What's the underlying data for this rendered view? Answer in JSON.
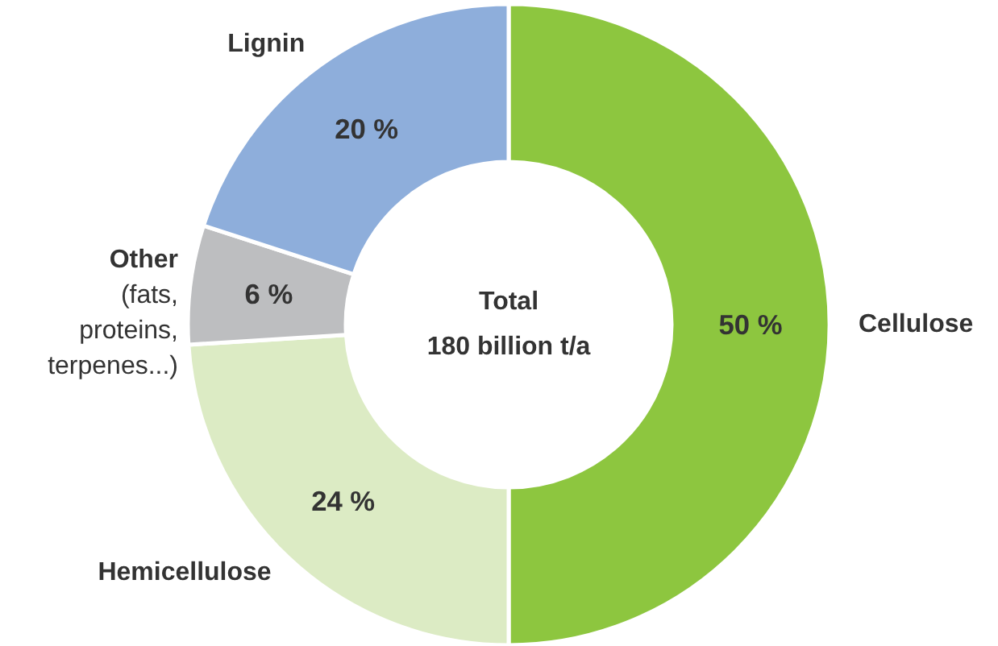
{
  "chart_data": {
    "type": "donut",
    "categories": [
      "Cellulose",
      "Hemicellulose",
      "Other",
      "Lignin"
    ],
    "values": [
      50,
      24,
      6,
      20
    ],
    "colors": [
      "#8dc63f",
      "#dcebc4",
      "#bdbec0",
      "#8eaedb"
    ],
    "value_labels": [
      "50 %",
      "24 %",
      "6 %",
      "20 %"
    ],
    "annotations": [
      "Total",
      "180 billion t/a",
      "(fats, proteins, terpenes...)"
    ]
  }
}
